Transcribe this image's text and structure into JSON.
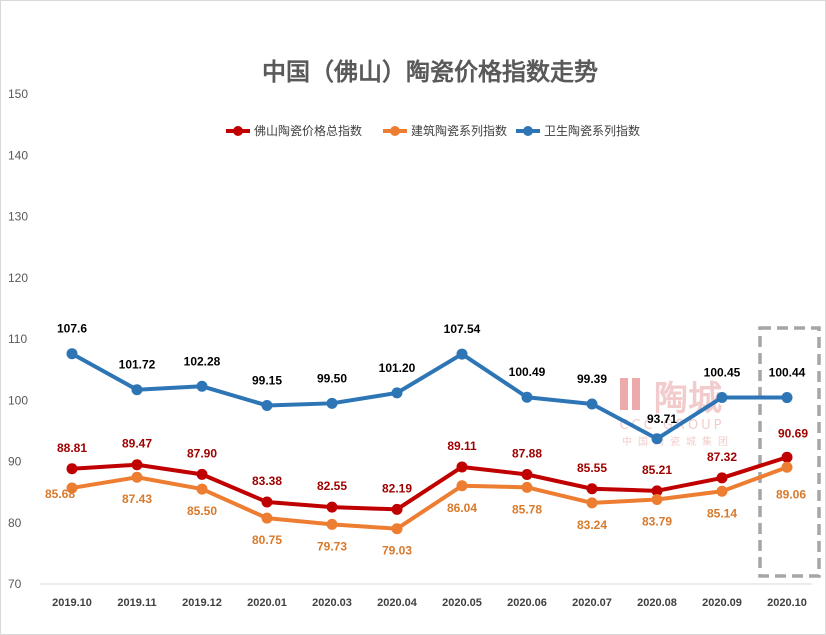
{
  "chart_data": {
    "type": "line",
    "title": "中国（佛山）陶瓷价格指数走势",
    "categories": [
      "2019.10",
      "2019.11",
      "2019.12",
      "2020.01",
      "2020.03",
      "2020.04",
      "2020.05",
      "2020.06",
      "2020.07",
      "2020.08",
      "2020.09",
      "2020.10"
    ],
    "yticks": [
      "70",
      "80",
      "90",
      "100",
      "110",
      "120",
      "130",
      "140",
      "150"
    ],
    "ylim": [
      70,
      150
    ],
    "grid": false,
    "legend_position": "top",
    "series": [
      {
        "name": "佛山陶瓷价格总指数",
        "color": "#c00000",
        "label_color": "#a00000",
        "values": [
          88.81,
          89.47,
          87.9,
          83.38,
          82.55,
          82.19,
          89.11,
          87.88,
          85.55,
          85.21,
          87.32,
          90.69
        ],
        "labels": [
          "88.81",
          "89.47",
          "87.90",
          "83.38",
          "82.55",
          "82.19",
          "89.11",
          "87.88",
          "85.55",
          "85.21",
          "87.32",
          "90.69"
        ]
      },
      {
        "name": "建筑陶瓷系列指数",
        "color": "#ed7d31",
        "label_color": "#d9792b",
        "values": [
          85.68,
          87.43,
          85.5,
          80.75,
          79.73,
          79.03,
          86.04,
          85.78,
          83.24,
          83.79,
          85.14,
          89.06
        ],
        "labels": [
          "85.68",
          "87.43",
          "85.50",
          "80.75",
          "79.73",
          "79.03",
          "86.04",
          "85.78",
          "83.24",
          "83.79",
          "85.14",
          "89.06"
        ]
      },
      {
        "name": "卫生陶瓷系列指数",
        "color": "#2e75b6",
        "label_color": "#000000",
        "values": [
          107.6,
          101.72,
          102.28,
          99.15,
          99.5,
          101.2,
          107.54,
          100.49,
          99.39,
          93.71,
          100.45,
          100.44
        ],
        "labels": [
          "107.6",
          "101.72",
          "102.28",
          "99.15",
          "99.50",
          "101.20",
          "107.54",
          "100.49",
          "99.39",
          "93.71",
          "100.45",
          "100.44"
        ]
      }
    ]
  },
  "watermark": {
    "brand": "陶城",
    "sub": "CCC GROUP",
    "cn": "中国陶瓷城集团"
  }
}
